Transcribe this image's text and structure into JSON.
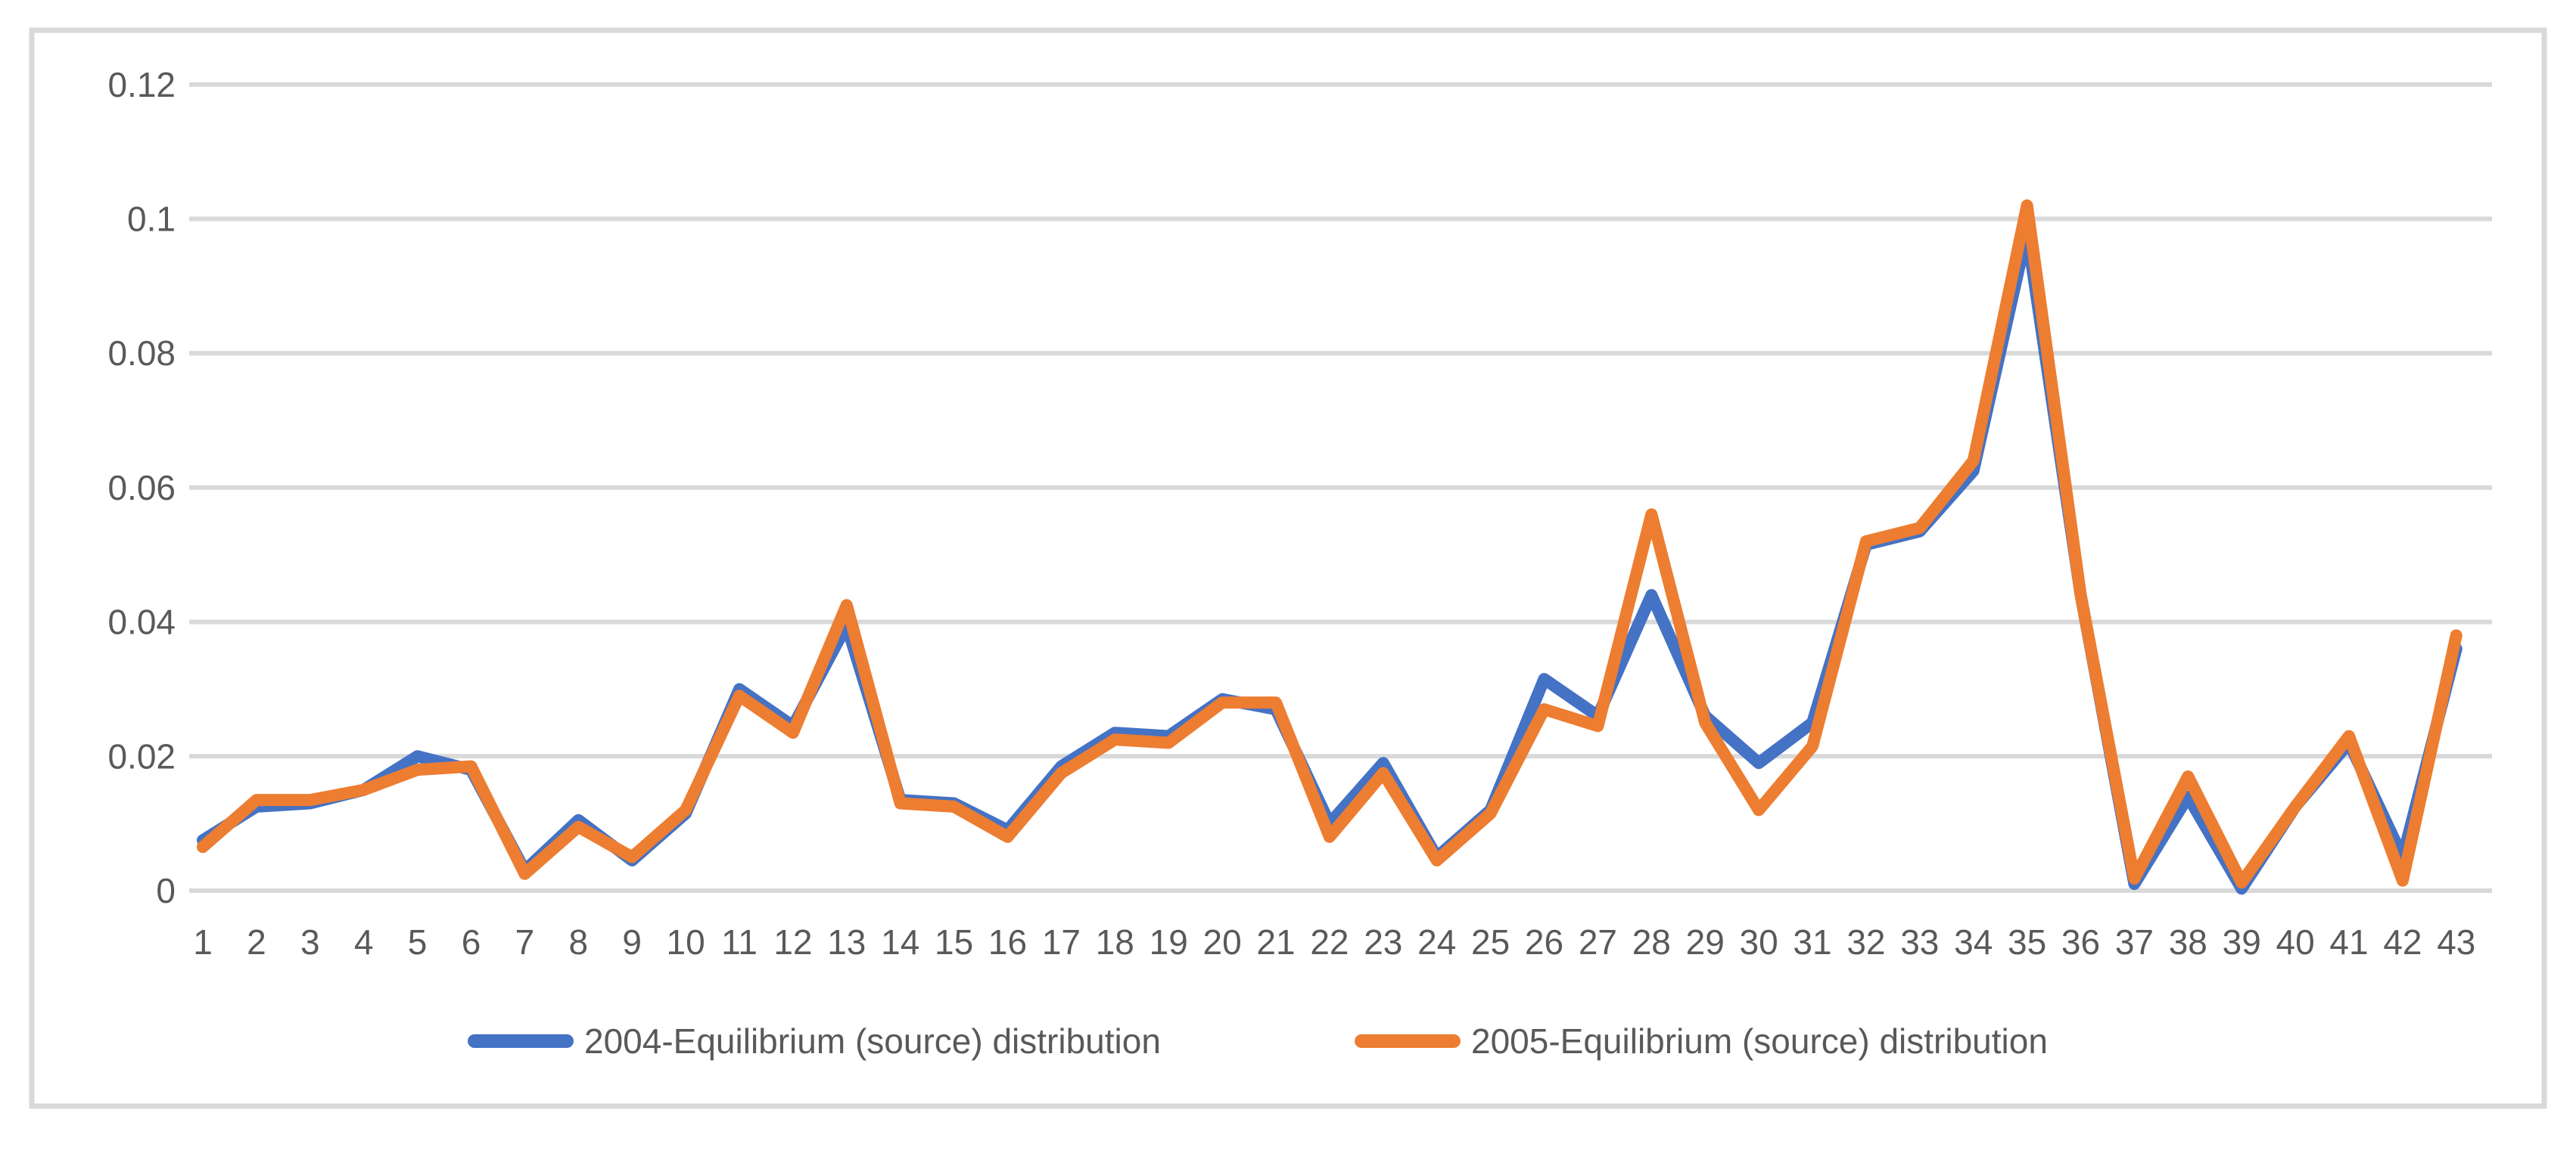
{
  "chart_data": {
    "type": "line",
    "title": "",
    "xlabel": "",
    "ylabel": "",
    "grid": true,
    "legend_position": "bottom-center",
    "background_color": "#ffffff",
    "frame_color": "#d9d9d9",
    "gridline_color": "#d9d9d9",
    "text_color": "#595959",
    "y_axis": {
      "min": 0,
      "max": 0.12,
      "step": 0.02,
      "tick_labels": [
        "0",
        "0.02",
        "0.04",
        "0.06",
        "0.08",
        "0.1",
        "0.12"
      ]
    },
    "x_axis": {
      "tick_labels": [
        "1",
        "2",
        "3",
        "4",
        "5",
        "6",
        "7",
        "8",
        "9",
        "10",
        "11",
        "12",
        "13",
        "14",
        "15",
        "16",
        "17",
        "18",
        "19",
        "20",
        "21",
        "22",
        "23",
        "24",
        "25",
        "26",
        "27",
        "28",
        "29",
        "30",
        "31",
        "32",
        "33",
        "34",
        "35",
        "36",
        "37",
        "38",
        "39",
        "40",
        "41",
        "42",
        "43"
      ]
    },
    "series": [
      {
        "name": "2004-Equilibrium (source) distribution",
        "color": "#4472C4",
        "values": [
          0.0075,
          0.0125,
          0.013,
          0.015,
          0.02,
          0.018,
          0.003,
          0.0105,
          0.0045,
          0.0115,
          0.03,
          0.0245,
          0.0395,
          0.0135,
          0.013,
          0.009,
          0.0185,
          0.0235,
          0.023,
          0.0285,
          0.027,
          0.01,
          0.019,
          0.005,
          0.012,
          0.0315,
          0.026,
          0.044,
          0.026,
          0.019,
          0.025,
          0.0515,
          0.0535,
          0.0625,
          0.098,
          0.044,
          0.001,
          0.014,
          0.0003,
          0.0125,
          0.022,
          0.005,
          0.036
        ]
      },
      {
        "name": "2005-Equilibrium (source) distribution",
        "color": "#ED7D31",
        "values": [
          0.0065,
          0.0135,
          0.0135,
          0.015,
          0.018,
          0.0185,
          0.0025,
          0.0095,
          0.005,
          0.012,
          0.029,
          0.0235,
          0.0425,
          0.013,
          0.0125,
          0.008,
          0.0175,
          0.0225,
          0.022,
          0.028,
          0.028,
          0.008,
          0.0175,
          0.0045,
          0.0115,
          0.027,
          0.0245,
          0.056,
          0.025,
          0.012,
          0.0215,
          0.052,
          0.054,
          0.064,
          0.102,
          0.044,
          0.0018,
          0.017,
          0.0012,
          0.0125,
          0.023,
          0.0015,
          0.038
        ]
      }
    ]
  }
}
